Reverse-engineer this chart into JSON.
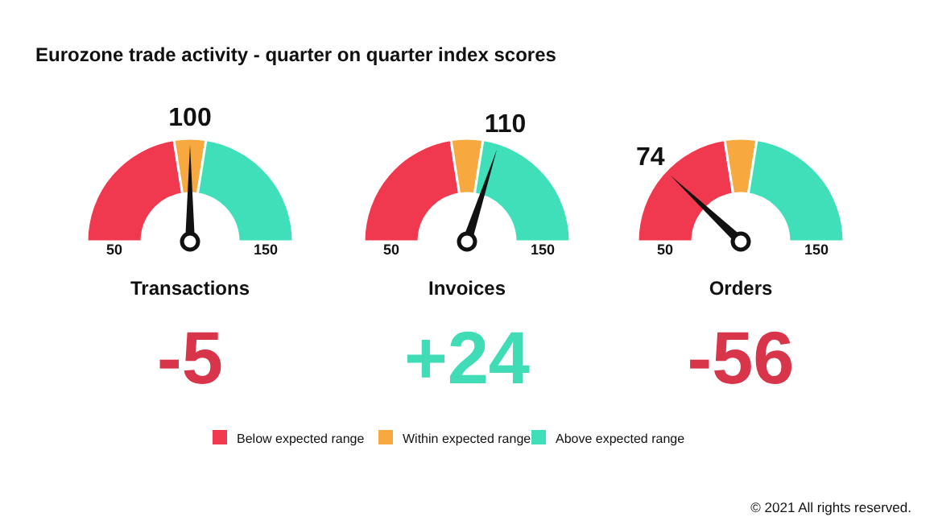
{
  "chart_data": [
    {
      "type": "donut",
      "title": "Eurozone trade activity - quarter on quarter index scores",
      "xlabel": "Transactions",
      "categories": [
        "Below expected range",
        "Within expected range",
        "Above expected range"
      ],
      "values": [
        45,
        10,
        45
      ],
      "colors": [
        "#f0384f",
        "#f7a83e",
        "#3fe0b9"
      ],
      "needle": "Within expected range",
      "annotations": [
        "50",
        "150",
        "100",
        "-5"
      ],
      "legend": "bottom"
    },
    {
      "type": "donut",
      "xlabel": "Invoices",
      "categories": [
        null,
        null,
        null
      ],
      "values": [
        45,
        10,
        45
      ],
      "colors": [
        "#f0384f",
        "#f7a83e",
        "#3fe0b9"
      ],
      "annotations": [
        "50",
        "150",
        "110",
        "+24"
      ]
    },
    {
      "type": "donut",
      "xlabel": "Orders",
      "categories": [
        null,
        null,
        null
      ],
      "values": [
        45,
        10,
        45
      ],
      "colors": [
        "#f0384f",
        "#f7a83e",
        "#3fe0b9"
      ],
      "annotations": [
        "50",
        "150",
        "74",
        "-56",
        "© 2021 All rights reserved."
      ]
    }
  ]
}
